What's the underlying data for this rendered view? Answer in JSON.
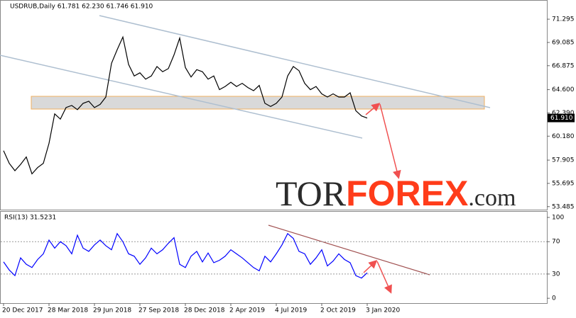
{
  "chart_data": [
    {
      "type": "line",
      "title": "USDRUB,Daily  61.781 62.230 61.746 61.910",
      "series": [
        {
          "name": "USDRUB",
          "color": "#000000",
          "values": [
            58.8,
            57.6,
            56.9,
            57.5,
            58.2,
            56.6,
            57.2,
            57.6,
            59.5,
            62.3,
            61.8,
            62.9,
            63.1,
            62.7,
            63.3,
            63.5,
            62.9,
            63.2,
            63.9,
            67.1,
            68.4,
            69.6,
            67.0,
            65.9,
            66.2,
            65.6,
            65.9,
            66.8,
            66.3,
            66.6,
            67.9,
            69.5,
            66.7,
            65.8,
            66.5,
            66.3,
            65.6,
            65.9,
            64.6,
            64.9,
            65.3,
            64.9,
            65.2,
            64.8,
            64.5,
            65.0,
            63.3,
            63.0,
            63.3,
            63.9,
            65.9,
            66.8,
            66.4,
            65.2,
            64.6,
            64.9,
            64.2,
            63.9,
            64.2,
            63.9,
            63.9,
            64.3,
            62.6,
            62.1,
            61.9
          ]
        }
      ],
      "last_price": {
        "value": 61.91,
        "label": "61.910"
      },
      "ylim": [
        53.2,
        73.05
      ],
      "yticks": [
        71.295,
        69.085,
        66.875,
        {
          "value": 64.6,
          "label": "64.600"
        },
        {
          "value": 62.39,
          "label": "62.390"
        },
        {
          "value": 60.18,
          "label": "60.180"
        },
        57.905,
        55.695,
        53.485
      ]
    },
    {
      "type": "line",
      "title": "RSI(13) 31.5231",
      "categories": [
        "20 Dec 2017",
        null,
        null,
        null,
        null,
        null,
        null,
        null,
        "28 Mar 2018",
        null,
        null,
        null,
        null,
        null,
        null,
        null,
        "29 Jun 2018",
        null,
        null,
        null,
        null,
        null,
        null,
        null,
        "27 Sep 2018",
        null,
        null,
        null,
        null,
        null,
        null,
        null,
        "28 Dec 2018",
        null,
        null,
        null,
        null,
        null,
        null,
        null,
        "2 Apr 2019",
        null,
        null,
        null,
        null,
        null,
        null,
        null,
        "4 Jul 2019",
        null,
        null,
        null,
        null,
        null,
        null,
        null,
        "2 Oct 2019",
        null,
        null,
        null,
        null,
        null,
        null,
        null,
        "3 Jan 2020"
      ],
      "series": [
        {
          "name": "RSI(13)",
          "color": "#0000ff",
          "values": [
            45,
            35,
            28,
            50,
            42,
            38,
            48,
            55,
            72,
            62,
            70,
            65,
            55,
            78,
            62,
            58,
            66,
            72,
            65,
            60,
            80,
            70,
            55,
            52,
            42,
            50,
            62,
            55,
            60,
            68,
            75,
            42,
            38,
            52,
            58,
            45,
            56,
            44,
            47,
            52,
            60,
            55,
            50,
            44,
            38,
            34,
            52,
            45,
            55,
            66,
            80,
            74,
            58,
            55,
            42,
            50,
            60,
            40,
            46,
            55,
            48,
            44,
            28,
            25,
            31.5
          ]
        }
      ],
      "ylim": [
        -6,
        107
      ],
      "yticks": [
        100,
        70,
        30,
        0
      ],
      "levels": [
        70,
        30
      ]
    }
  ],
  "watermark": {
    "tor": "TOR",
    "forex": "FOREX",
    "com": ".com"
  }
}
